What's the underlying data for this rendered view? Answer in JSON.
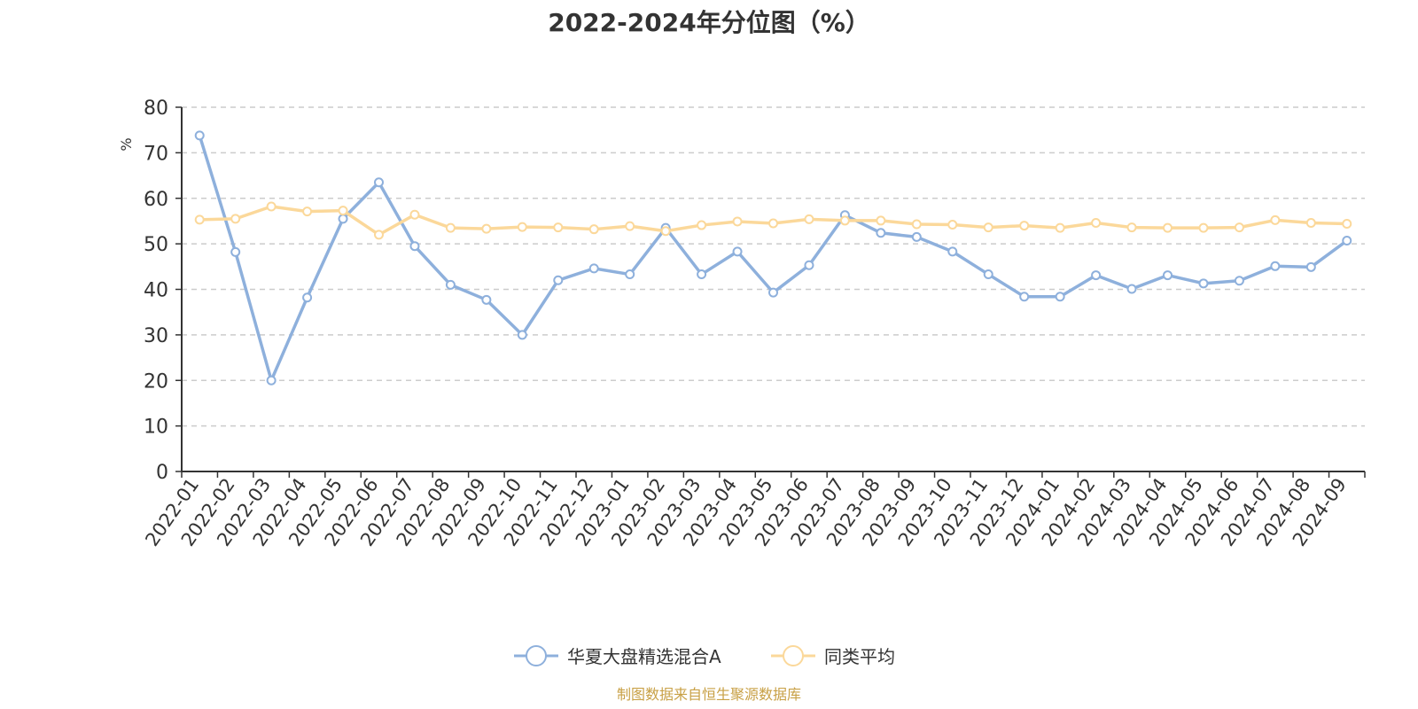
{
  "chart_data": {
    "type": "line",
    "title": "2022-2024年分位图（%）",
    "ylabel": "%",
    "xlabel": "",
    "ylim": [
      0,
      80
    ],
    "yticks": [
      0,
      10,
      20,
      30,
      40,
      50,
      60,
      70,
      80
    ],
    "grid": "horizontal-dashed",
    "legend_position": "bottom",
    "categories": [
      "2022-01",
      "2022-02",
      "2022-03",
      "2022-04",
      "2022-05",
      "2022-06",
      "2022-07",
      "2022-08",
      "2022-09",
      "2022-10",
      "2022-11",
      "2022-12",
      "2023-01",
      "2023-02",
      "2023-03",
      "2023-04",
      "2023-05",
      "2023-06",
      "2023-07",
      "2023-08",
      "2023-09",
      "2023-10",
      "2023-11",
      "2023-12",
      "2024-01",
      "2024-02",
      "2024-03",
      "2024-04",
      "2024-05",
      "2024-06",
      "2024-07",
      "2024-08",
      "2024-09"
    ],
    "series": [
      {
        "name": "华夏大盘精选混合A",
        "color": "#8eb0dc",
        "values": [
          73.8,
          48.2,
          20.0,
          38.2,
          55.5,
          63.5,
          49.5,
          41.0,
          37.7,
          30.0,
          42.0,
          44.6,
          43.3,
          53.5,
          43.3,
          48.3,
          39.3,
          45.3,
          56.3,
          52.4,
          51.5,
          48.3,
          43.3,
          38.4,
          38.4,
          43.1,
          40.1,
          43.1,
          41.3,
          41.9,
          45.1,
          44.9,
          50.7
        ]
      },
      {
        "name": "同类平均",
        "color": "#fbd89a",
        "values": [
          55.3,
          55.5,
          58.2,
          57.1,
          57.3,
          52.0,
          56.4,
          53.5,
          53.3,
          53.7,
          53.6,
          53.2,
          53.9,
          52.8,
          54.1,
          54.9,
          54.5,
          55.4,
          55.1,
          55.1,
          54.3,
          54.2,
          53.6,
          54.0,
          53.5,
          54.6,
          53.6,
          53.5,
          53.5,
          53.6,
          55.2,
          54.6,
          54.4
        ]
      }
    ]
  },
  "source_text": "制图数据来自恒生聚源数据库",
  "colors": {
    "title": "#333333",
    "axis": "#333333",
    "ylabel": "#ff0000",
    "grid": "#cccccc",
    "source": "#c8a045"
  }
}
